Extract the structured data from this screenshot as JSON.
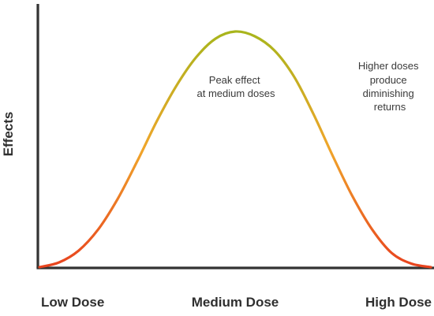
{
  "chart_data": {
    "type": "line",
    "ylabel": "Effects",
    "xlabel": "",
    "categories": [
      "Low Dose",
      "Medium Dose",
      "High Dose"
    ],
    "curve": {
      "x": [
        0.0,
        0.05,
        0.1,
        0.15,
        0.2,
        0.25,
        0.3,
        0.35,
        0.4,
        0.45,
        0.5,
        0.55,
        0.6,
        0.65,
        0.7,
        0.75,
        0.8,
        0.85,
        0.9,
        0.95,
        1.0
      ],
      "y": [
        0.0,
        0.02,
        0.07,
        0.16,
        0.29,
        0.45,
        0.62,
        0.77,
        0.89,
        0.97,
        1.0,
        0.98,
        0.92,
        0.81,
        0.65,
        0.47,
        0.3,
        0.16,
        0.06,
        0.015,
        0.0
      ]
    },
    "gradient": {
      "peak_color": "#a8b51c",
      "mid_color": "#f0a52a",
      "low_color": "#e8421e"
    },
    "annotations": [
      {
        "lines": [
          "Peak effect",
          "at medium doses"
        ]
      },
      {
        "lines": [
          "Higher doses",
          "produce",
          "diminishing",
          "returns"
        ]
      }
    ],
    "grid": false,
    "legend": "none"
  }
}
